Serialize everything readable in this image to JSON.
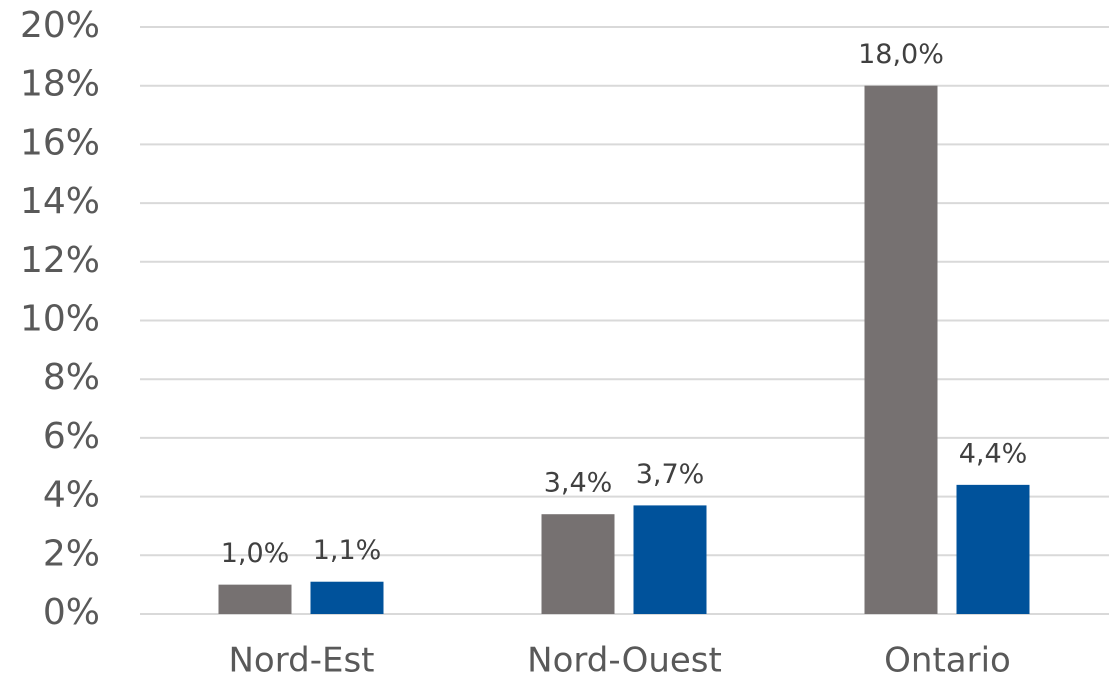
{
  "chart_data": {
    "type": "bar",
    "categories": [
      "Nord-Est",
      "Nord-Ouest",
      "Ontario"
    ],
    "series": [
      {
        "color": "#767171",
        "values": [
          1.0,
          3.4,
          18.0
        ],
        "value_labels": [
          "1,0%",
          "3,4%",
          "18,0%"
        ]
      },
      {
        "color": "#00529b",
        "values": [
          1.1,
          3.7,
          4.4
        ],
        "value_labels": [
          "1,1%",
          "3,7%",
          "4,4%"
        ]
      }
    ],
    "ylim": [
      0,
      20
    ],
    "yticks": [
      {
        "value": 0,
        "label": "0%"
      },
      {
        "value": 2,
        "label": "2%"
      },
      {
        "value": 4,
        "label": "4%"
      },
      {
        "value": 6,
        "label": "6%"
      },
      {
        "value": 8,
        "label": "8%"
      },
      {
        "value": 10,
        "label": "10%"
      },
      {
        "value": 12,
        "label": "12%"
      },
      {
        "value": 14,
        "label": "14%"
      },
      {
        "value": 16,
        "label": "16%"
      },
      {
        "value": 18,
        "label": "18%"
      },
      {
        "value": 20,
        "label": "20%"
      }
    ],
    "grid": true
  }
}
